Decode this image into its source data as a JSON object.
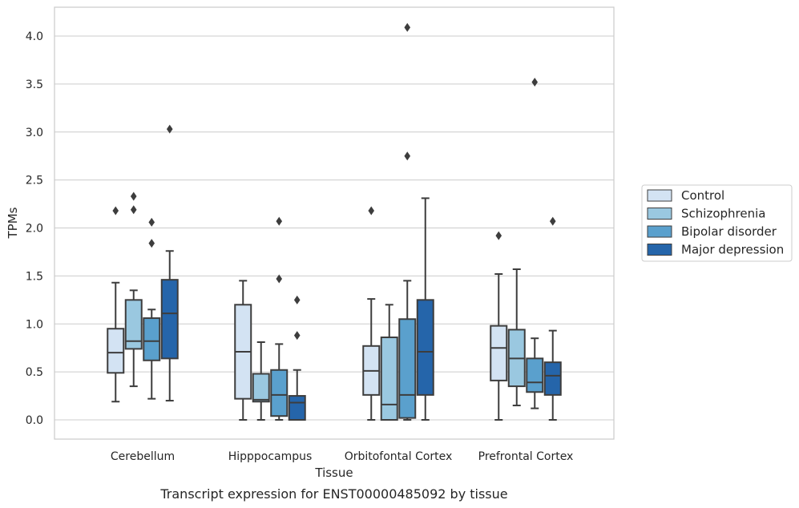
{
  "chart_data": {
    "type": "box",
    "caption": "Transcript expression for ENST00000485092 by tissue",
    "xlabel": "Tissue",
    "ylabel": "TPMs",
    "ylim": [
      -0.2,
      4.3
    ],
    "yticks": [
      0.0,
      0.5,
      1.0,
      1.5,
      2.0,
      2.5,
      3.0,
      3.5,
      4.0
    ],
    "ytick_labels": [
      "0.0",
      "0.5",
      "1.0",
      "1.5",
      "2.0",
      "2.5",
      "3.0",
      "3.5",
      "4.0"
    ],
    "grid": "horizontal",
    "legend_position": "outside-right",
    "categories": [
      "Cerebellum",
      "Hipppocampus",
      "Orbitofontal Cortex",
      "Prefrontal Cortex"
    ],
    "series": [
      {
        "name": "Control",
        "color": "#d3e3f3",
        "boxes": [
          {
            "whislo": 0.19,
            "q1": 0.49,
            "med": 0.7,
            "q3": 0.95,
            "whishi": 1.43,
            "fliers": [
              2.18
            ]
          },
          {
            "whislo": 0.0,
            "q1": 0.22,
            "med": 0.71,
            "q3": 1.2,
            "whishi": 1.45,
            "fliers": []
          },
          {
            "whislo": 0.0,
            "q1": 0.26,
            "med": 0.51,
            "q3": 0.77,
            "whishi": 1.26,
            "fliers": [
              2.18
            ]
          },
          {
            "whislo": 0.0,
            "q1": 0.41,
            "med": 0.75,
            "q3": 0.98,
            "whishi": 1.52,
            "fliers": [
              1.92
            ]
          }
        ]
      },
      {
        "name": "Schizophrenia",
        "color": "#9ac8e0",
        "boxes": [
          {
            "whislo": 0.35,
            "q1": 0.74,
            "med": 0.82,
            "q3": 1.25,
            "whishi": 1.35,
            "fliers": [
              2.19,
              2.33
            ]
          },
          {
            "whislo": 0.0,
            "q1": 0.19,
            "med": 0.21,
            "q3": 0.48,
            "whishi": 0.81,
            "fliers": []
          },
          {
            "whislo": 0.0,
            "q1": 0.0,
            "med": 0.16,
            "q3": 0.86,
            "whishi": 1.2,
            "fliers": []
          },
          {
            "whislo": 0.15,
            "q1": 0.35,
            "med": 0.64,
            "q3": 0.94,
            "whishi": 1.57,
            "fliers": []
          }
        ]
      },
      {
        "name": "Bipolar disorder",
        "color": "#5aa0cd",
        "boxes": [
          {
            "whislo": 0.22,
            "q1": 0.62,
            "med": 0.82,
            "q3": 1.06,
            "whishi": 1.15,
            "fliers": [
              1.84,
              2.06
            ]
          },
          {
            "whislo": 0.0,
            "q1": 0.04,
            "med": 0.26,
            "q3": 0.52,
            "whishi": 0.79,
            "fliers": [
              1.47,
              2.07
            ]
          },
          {
            "whislo": 0.0,
            "q1": 0.02,
            "med": 0.26,
            "q3": 1.05,
            "whishi": 1.45,
            "fliers": [
              2.75,
              4.09
            ]
          },
          {
            "whislo": 0.12,
            "q1": 0.29,
            "med": 0.39,
            "q3": 0.64,
            "whishi": 0.85,
            "fliers": [
              3.52
            ]
          }
        ]
      },
      {
        "name": "Major depression",
        "color": "#2565aa",
        "boxes": [
          {
            "whislo": 0.2,
            "q1": 0.64,
            "med": 1.11,
            "q3": 1.46,
            "whishi": 1.76,
            "fliers": [
              3.03
            ]
          },
          {
            "whislo": 0.0,
            "q1": 0.0,
            "med": 0.18,
            "q3": 0.25,
            "whishi": 0.52,
            "fliers": [
              0.88,
              1.25
            ]
          },
          {
            "whislo": 0.0,
            "q1": 0.26,
            "med": 0.71,
            "q3": 1.25,
            "whishi": 2.31,
            "fliers": []
          },
          {
            "whislo": 0.0,
            "q1": 0.26,
            "med": 0.46,
            "q3": 0.6,
            "whishi": 0.93,
            "fliers": [
              2.07
            ]
          }
        ]
      }
    ]
  }
}
